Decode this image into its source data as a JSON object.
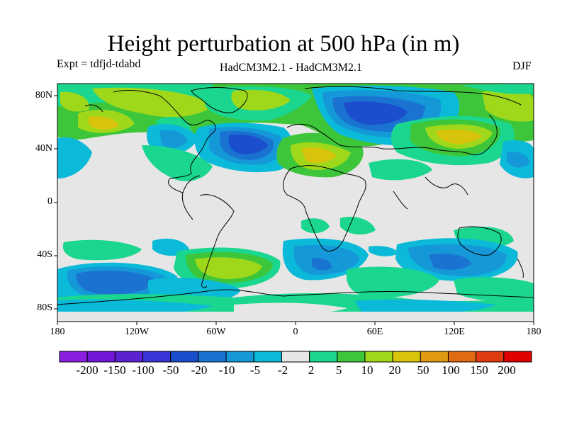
{
  "title": "Height perturbation at 500 hPa (in m)",
  "experiment": "Expt = tdfjd-tdabd",
  "models": "HadCM3M2.1 - HadCM3M2.1",
  "season": "DJF",
  "map": {
    "projection": "cylindrical equidistant",
    "lon_range": [
      -180,
      180
    ],
    "lat_range": [
      -90,
      90
    ],
    "background_color": "#e6e6e6",
    "lat_ticks": [
      {
        "value": 80,
        "label": "80N"
      },
      {
        "value": 40,
        "label": "40N"
      },
      {
        "value": 0,
        "label": "0"
      },
      {
        "value": -40,
        "label": "40S"
      },
      {
        "value": -80,
        "label": "80S"
      }
    ],
    "lon_ticks": [
      {
        "value": -180,
        "label": "180"
      },
      {
        "value": -120,
        "label": "120W"
      },
      {
        "value": -60,
        "label": "60W"
      },
      {
        "value": 0,
        "label": "0"
      },
      {
        "value": 60,
        "label": "60E"
      },
      {
        "value": 120,
        "label": "120E"
      },
      {
        "value": 180,
        "label": "180"
      }
    ]
  },
  "colorbar": {
    "colors": [
      "#8a1fe0",
      "#7216d8",
      "#5b22d0",
      "#3b34d6",
      "#1a4ecc",
      "#1a73d1",
      "#1598d8",
      "#0bbad8",
      "#e6e6e6",
      "#1ad68e",
      "#3ec63a",
      "#9fd81a",
      "#d8c40d",
      "#e09a12",
      "#e06a12",
      "#e03c12",
      "#e00000"
    ],
    "labels": [
      "-200",
      "-150",
      "-100",
      "-50",
      "-20",
      "-10",
      "-5",
      "-2",
      "2",
      "5",
      "10",
      "20",
      "50",
      "100",
      "150",
      "200"
    ]
  }
}
